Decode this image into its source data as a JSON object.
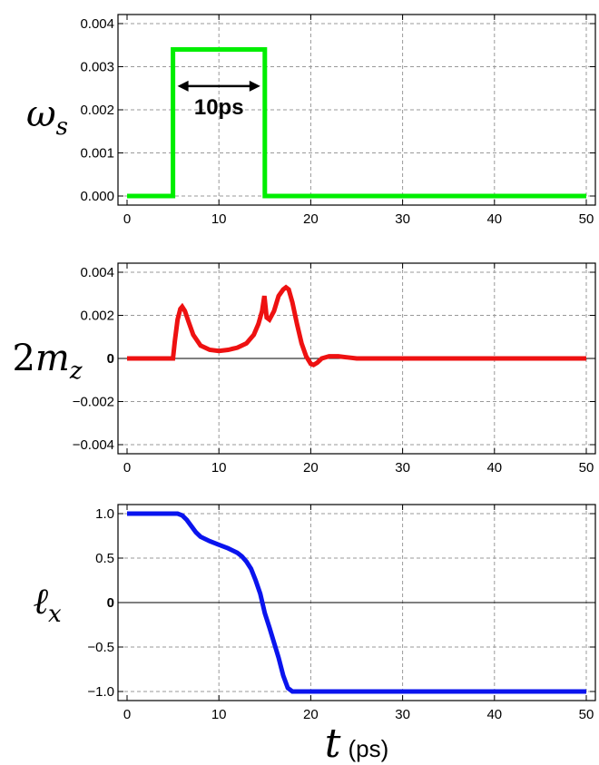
{
  "chart_data": [
    {
      "type": "line",
      "panel": "top",
      "ylabel": {
        "symbol": "ω",
        "sub": "s"
      },
      "xlim": [
        0,
        50
      ],
      "ylim": [
        0,
        0.004
      ],
      "xticks": [
        0,
        10,
        20,
        30,
        40,
        50
      ],
      "xtick_labels": [
        "0",
        "10",
        "20",
        "30",
        "40",
        "50"
      ],
      "yticks": [
        0,
        0.001,
        0.002,
        0.003,
        0.004
      ],
      "ytick_labels": [
        "0.000",
        "0.001",
        "0.002",
        "0.003",
        "0.004"
      ],
      "grid": true,
      "series": [
        {
          "color": "#00ee00",
          "x": [
            0,
            5,
            5,
            15,
            15,
            50
          ],
          "y": [
            0,
            0,
            0.0034,
            0.0034,
            0,
            0
          ]
        }
      ],
      "annotation": {
        "text": "10ps",
        "x_start": 5,
        "x_end": 15,
        "y": 0.00255
      }
    },
    {
      "type": "line",
      "panel": "middle",
      "ylabel": {
        "prefix": "2",
        "symbol": "m",
        "sub": "z"
      },
      "xlim": [
        0,
        50
      ],
      "ylim": [
        -0.004,
        0.004
      ],
      "xticks": [
        0,
        10,
        20,
        30,
        40,
        50
      ],
      "xtick_labels": [
        "0",
        "10",
        "20",
        "30",
        "40",
        "50"
      ],
      "yticks": [
        -0.004,
        -0.002,
        0,
        0.002,
        0.004
      ],
      "ytick_labels": [
        "−0.004",
        "−0.002",
        "0",
        "0.002",
        "0.004"
      ],
      "zero_line": true,
      "grid": true,
      "series": [
        {
          "color": "#ee1111",
          "x": [
            0,
            5,
            5.2,
            5.5,
            5.8,
            6.0,
            6.3,
            6.7,
            7.2,
            8,
            9,
            10,
            11,
            12,
            13,
            13.8,
            14.3,
            14.7,
            14.95,
            15.2,
            15.5,
            16,
            16.5,
            17,
            17.3,
            17.6,
            18,
            18.5,
            19,
            19.5,
            20,
            20.3,
            20.7,
            21.2,
            22,
            23,
            24,
            25,
            28,
            30,
            35,
            40,
            50
          ],
          "y": [
            0,
            0,
            0.0008,
            0.0018,
            0.0023,
            0.0024,
            0.0022,
            0.0017,
            0.0011,
            0.0006,
            0.0004,
            0.00035,
            0.0004,
            0.0005,
            0.0007,
            0.0011,
            0.0016,
            0.0022,
            0.0029,
            0.0019,
            0.0018,
            0.0022,
            0.0029,
            0.0032,
            0.0033,
            0.0032,
            0.0026,
            0.0016,
            0.0007,
            0.0001,
            -0.00025,
            -0.0003,
            -0.0002,
            0.0,
            0.0001,
            0.0001,
            5e-05,
            0,
            0,
            0,
            0,
            0,
            0
          ]
        }
      ]
    },
    {
      "type": "line",
      "panel": "bottom",
      "ylabel": {
        "symbol": "ℓ",
        "sub": "x"
      },
      "xlim": [
        0,
        50
      ],
      "ylim": [
        -1.0,
        1.0
      ],
      "xticks": [
        0,
        10,
        20,
        30,
        40,
        50
      ],
      "xtick_labels": [
        "0",
        "10",
        "20",
        "30",
        "40",
        "50"
      ],
      "yticks": [
        -1.0,
        -0.5,
        0,
        0.5,
        1.0
      ],
      "ytick_labels": [
        "−1.0",
        "−0.5",
        "0",
        "0.5",
        "1.0"
      ],
      "zero_line": true,
      "grid": true,
      "xlabel": {
        "symbol": "t",
        "unit": "(ps)"
      },
      "series": [
        {
          "color": "#0a14ee",
          "x": [
            0,
            5.5,
            6,
            6.5,
            7,
            7.5,
            8,
            9,
            10,
            11,
            12,
            12.5,
            13,
            13.5,
            14,
            14.5,
            15,
            15.5,
            16,
            16.5,
            17,
            17.5,
            18,
            18.5,
            19,
            20,
            25,
            30,
            40,
            50
          ],
          "y": [
            1.0,
            1.0,
            0.98,
            0.93,
            0.86,
            0.79,
            0.74,
            0.69,
            0.65,
            0.61,
            0.56,
            0.52,
            0.46,
            0.38,
            0.25,
            0.1,
            -0.12,
            -0.28,
            -0.45,
            -0.62,
            -0.82,
            -0.96,
            -1.0,
            -1.0,
            -1.0,
            -1.0,
            -1.0,
            -1.0,
            -1.0,
            -1.0
          ]
        }
      ]
    }
  ]
}
